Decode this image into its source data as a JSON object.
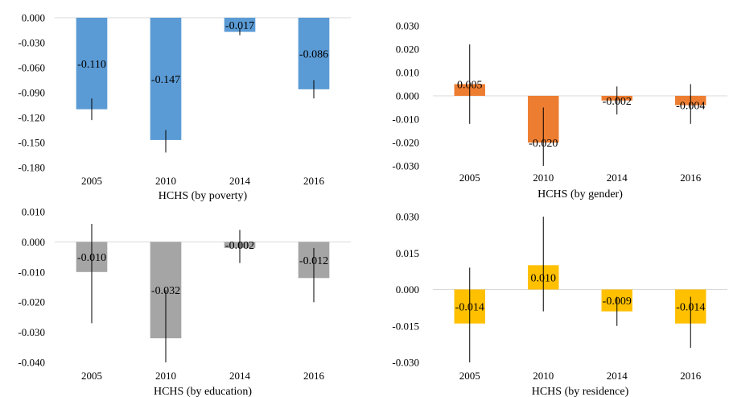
{
  "chart_data": [
    {
      "type": "bar",
      "title": "",
      "xlabel": "HCHS (by poverty)",
      "ylabel": "",
      "categories": [
        "2005",
        "2010",
        "2014",
        "2016"
      ],
      "values": [
        -0.11,
        -0.147,
        -0.017,
        -0.086
      ],
      "data_labels": [
        "-0.110",
        "-0.147",
        "-0.017",
        "-0.086"
      ],
      "error_low": [
        -0.123,
        -0.162,
        -0.021,
        -0.097
      ],
      "error_high": [
        -0.097,
        -0.135,
        -0.013,
        -0.075
      ],
      "ylim": [
        -0.18,
        0.0
      ],
      "yticks": [
        0.0,
        -0.03,
        -0.06,
        -0.09,
        -0.12,
        -0.15,
        -0.18
      ],
      "ytick_labels": [
        "0.000",
        "-0.030",
        "-0.060",
        "-0.090",
        "-0.120",
        "-0.150",
        "-0.180"
      ],
      "grid": false,
      "color": "#5B9BD5"
    },
    {
      "type": "bar",
      "title": "",
      "xlabel": "HCHS (by gender)",
      "ylabel": "",
      "categories": [
        "2005",
        "2010",
        "2014",
        "2016"
      ],
      "values": [
        0.005,
        -0.02,
        -0.002,
        -0.004
      ],
      "data_labels": [
        "0.005",
        "-0.020",
        "-0.002",
        "-0.004"
      ],
      "error_low": [
        -0.012,
        -0.03,
        -0.008,
        -0.012
      ],
      "error_high": [
        0.022,
        -0.005,
        0.004,
        0.005
      ],
      "ylim": [
        -0.03,
        0.03
      ],
      "yticks": [
        0.03,
        0.02,
        0.01,
        0.0,
        -0.01,
        -0.02,
        -0.03
      ],
      "ytick_labels": [
        "0.030",
        "0.020",
        "0.010",
        "0.000",
        "-0.010",
        "-0.020",
        "-0.030"
      ],
      "grid": false,
      "color": "#ED7D31"
    },
    {
      "type": "bar",
      "title": "",
      "xlabel": "HCHS (by education)",
      "ylabel": "",
      "categories": [
        "2005",
        "2010",
        "2014",
        "2016"
      ],
      "values": [
        -0.01,
        -0.032,
        -0.002,
        -0.012
      ],
      "data_labels": [
        "-0.010",
        "-0.032",
        "-0.002",
        "-0.012"
      ],
      "error_low": [
        -0.027,
        -0.04,
        -0.007,
        -0.02
      ],
      "error_high": [
        0.006,
        -0.016,
        0.004,
        -0.002
      ],
      "ylim": [
        -0.04,
        0.01
      ],
      "yticks": [
        0.01,
        0.0,
        -0.01,
        -0.02,
        -0.03,
        -0.04
      ],
      "ytick_labels": [
        "0.010",
        "0.000",
        "-0.010",
        "-0.020",
        "-0.030",
        "-0.040"
      ],
      "grid": false,
      "color": "#A5A5A5"
    },
    {
      "type": "bar",
      "title": "",
      "xlabel": "HCHS (by residence)",
      "ylabel": "",
      "categories": [
        "2005",
        "2010",
        "2014",
        "2016"
      ],
      "values": [
        -0.014,
        0.01,
        -0.009,
        -0.014
      ],
      "data_labels": [
        "-0.014",
        "0.010",
        "-0.009",
        "-0.014"
      ],
      "error_low": [
        -0.03,
        -0.009,
        -0.015,
        -0.024
      ],
      "error_high": [
        0.009,
        0.03,
        -0.003,
        -0.003
      ],
      "ylim": [
        -0.03,
        0.03
      ],
      "yticks": [
        0.03,
        0.015,
        0.0,
        -0.015,
        -0.03
      ],
      "ytick_labels": [
        "0.030",
        "0.015",
        "0.000",
        "-0.015",
        "-0.030"
      ],
      "grid": false,
      "color": "#FFC000"
    }
  ]
}
